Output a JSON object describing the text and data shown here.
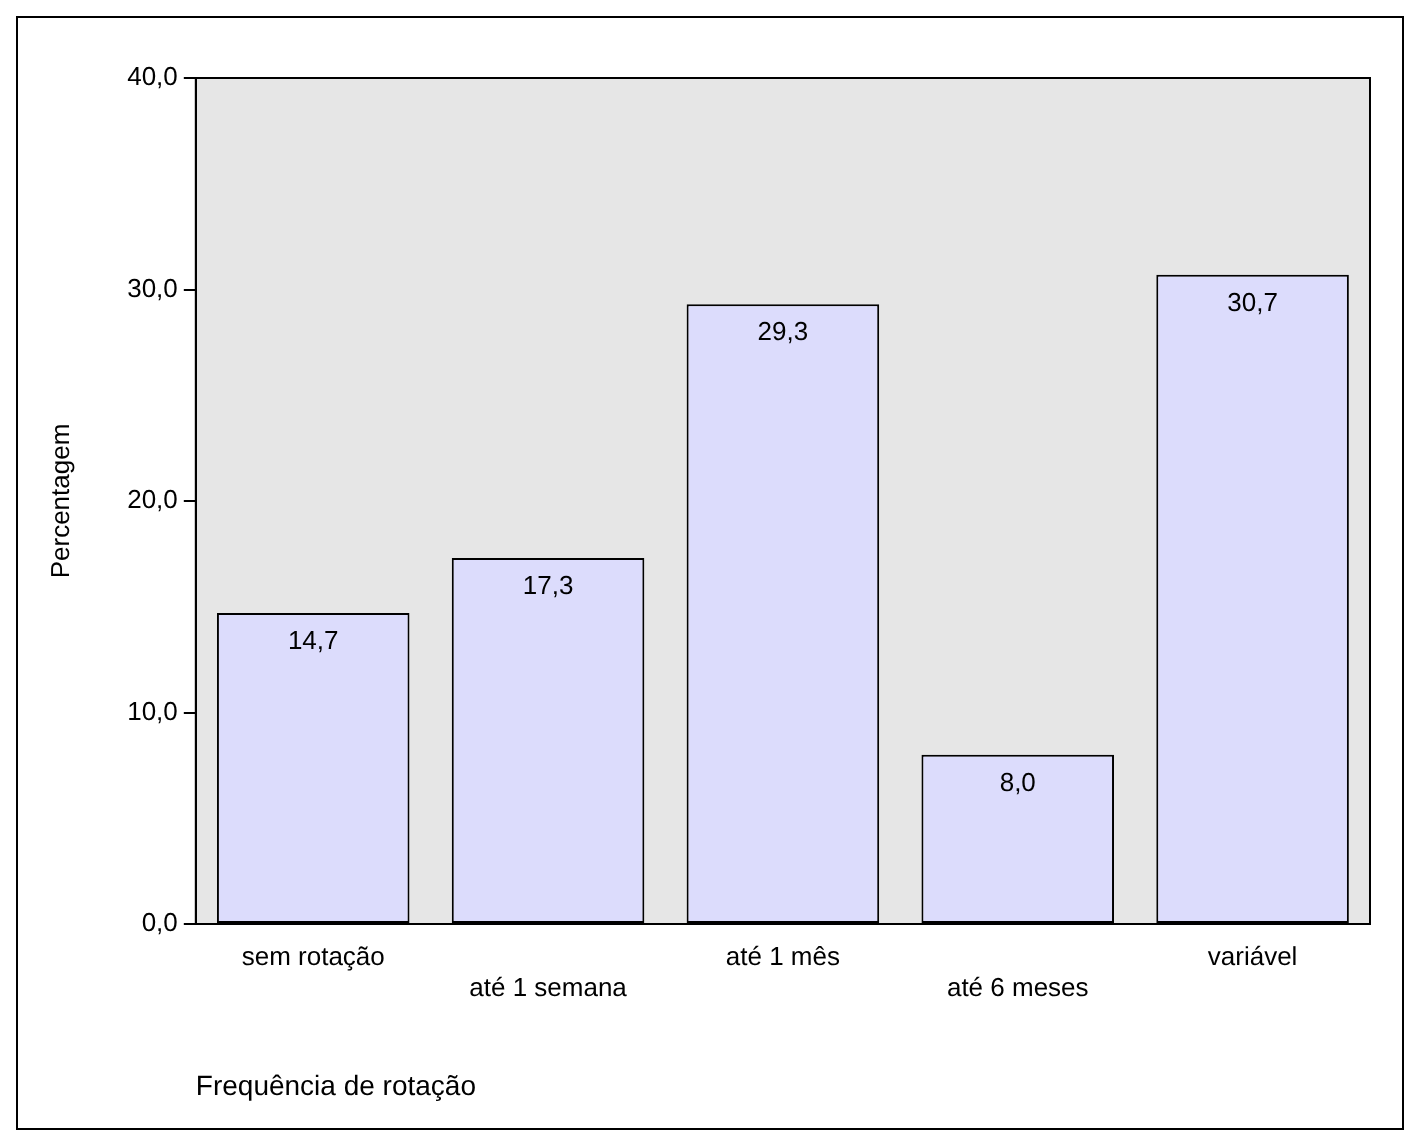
{
  "chart_data": {
    "type": "bar",
    "xlabel": "Frequência de rotação",
    "ylabel": "Percentagem",
    "categories": [
      "sem rotação",
      "até 1 semana",
      "até 1 mês",
      "até 6 meses",
      "variável"
    ],
    "values": [
      14.7,
      17.3,
      29.3,
      8.0,
      30.7
    ],
    "value_labels": [
      "14,7",
      "17,3",
      "29,3",
      "8,0",
      "30,7"
    ],
    "color": "#dcdcfc",
    "ylim": [
      0,
      40
    ],
    "yticks": [
      {
        "value": 0,
        "label": "0,0"
      },
      {
        "value": 10,
        "label": "10,0"
      },
      {
        "value": 20,
        "label": "20,0"
      },
      {
        "value": 30,
        "label": "30,0"
      },
      {
        "value": 40,
        "label": "40,0"
      }
    ],
    "grid": false,
    "legend": false
  }
}
